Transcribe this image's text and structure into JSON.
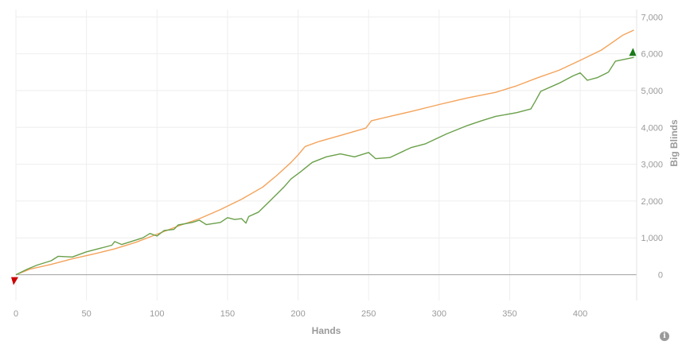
{
  "chart_data": {
    "type": "line",
    "xlabel": "Hands",
    "ylabel": "Big Blinds",
    "xlim": [
      0,
      440
    ],
    "ylim": [
      -700,
      7200
    ],
    "x_ticks": [
      0,
      50,
      100,
      150,
      200,
      250,
      300,
      350,
      400
    ],
    "x_tick_labels": [
      "0",
      "50",
      "100",
      "150",
      "200",
      "250",
      "300",
      "350",
      "400"
    ],
    "y_ticks": [
      0,
      1000,
      2000,
      3000,
      4000,
      5000,
      6000,
      7000
    ],
    "y_tick_labels": [
      "0",
      "1,000",
      "2,000",
      "3,000",
      "4,000",
      "5,000",
      "6,000",
      "7,000"
    ],
    "grid": true,
    "y_axis_side": "right",
    "series": [
      {
        "color": "#f4a35a",
        "points": [
          [
            0,
            0
          ],
          [
            10,
            150
          ],
          [
            25,
            280
          ],
          [
            40,
            430
          ],
          [
            55,
            560
          ],
          [
            70,
            700
          ],
          [
            85,
            880
          ],
          [
            100,
            1100
          ],
          [
            115,
            1320
          ],
          [
            130,
            1520
          ],
          [
            145,
            1770
          ],
          [
            160,
            2050
          ],
          [
            175,
            2380
          ],
          [
            185,
            2700
          ],
          [
            195,
            3050
          ],
          [
            200,
            3250
          ],
          [
            205,
            3480
          ],
          [
            215,
            3620
          ],
          [
            230,
            3780
          ],
          [
            248,
            3980
          ],
          [
            252,
            4180
          ],
          [
            265,
            4300
          ],
          [
            280,
            4430
          ],
          [
            300,
            4620
          ],
          [
            320,
            4800
          ],
          [
            340,
            4950
          ],
          [
            355,
            5130
          ],
          [
            370,
            5350
          ],
          [
            385,
            5550
          ],
          [
            400,
            5820
          ],
          [
            415,
            6100
          ],
          [
            430,
            6500
          ],
          [
            438,
            6640
          ]
        ]
      },
      {
        "color": "#6aa04a",
        "points": [
          [
            0,
            0
          ],
          [
            8,
            150
          ],
          [
            15,
            260
          ],
          [
            25,
            380
          ],
          [
            30,
            500
          ],
          [
            40,
            480
          ],
          [
            50,
            620
          ],
          [
            60,
            720
          ],
          [
            68,
            800
          ],
          [
            70,
            900
          ],
          [
            75,
            820
          ],
          [
            90,
            1000
          ],
          [
            95,
            1120
          ],
          [
            100,
            1050
          ],
          [
            105,
            1200
          ],
          [
            112,
            1230
          ],
          [
            115,
            1350
          ],
          [
            125,
            1420
          ],
          [
            130,
            1480
          ],
          [
            135,
            1360
          ],
          [
            145,
            1420
          ],
          [
            150,
            1550
          ],
          [
            155,
            1500
          ],
          [
            160,
            1520
          ],
          [
            163,
            1400
          ],
          [
            165,
            1580
          ],
          [
            172,
            1700
          ],
          [
            180,
            2000
          ],
          [
            190,
            2380
          ],
          [
            195,
            2600
          ],
          [
            202,
            2800
          ],
          [
            210,
            3050
          ],
          [
            220,
            3200
          ],
          [
            230,
            3280
          ],
          [
            240,
            3200
          ],
          [
            250,
            3320
          ],
          [
            255,
            3150
          ],
          [
            265,
            3180
          ],
          [
            280,
            3450
          ],
          [
            290,
            3550
          ],
          [
            305,
            3820
          ],
          [
            320,
            4050
          ],
          [
            330,
            4180
          ],
          [
            340,
            4300
          ],
          [
            355,
            4400
          ],
          [
            365,
            4500
          ],
          [
            368,
            4700
          ],
          [
            372,
            4980
          ],
          [
            385,
            5200
          ],
          [
            395,
            5400
          ],
          [
            400,
            5480
          ],
          [
            405,
            5280
          ],
          [
            412,
            5350
          ],
          [
            420,
            5500
          ],
          [
            425,
            5800
          ],
          [
            438,
            5900
          ]
        ]
      }
    ],
    "markers": [
      {
        "x": 0,
        "y": 0,
        "shape": "triangle-down",
        "color": "#cc0000"
      },
      {
        "x": 438,
        "y": 5900,
        "shape": "triangle-up",
        "color": "#1a7a1a"
      }
    ]
  }
}
